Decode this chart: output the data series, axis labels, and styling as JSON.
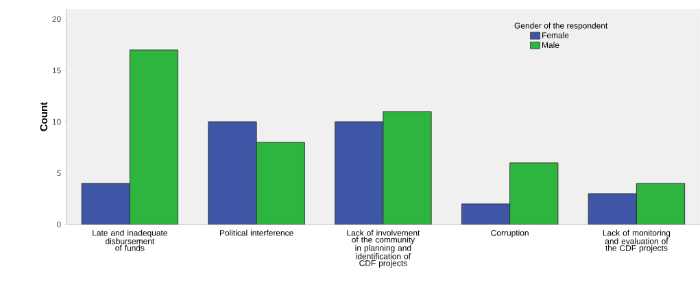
{
  "chart_data": {
    "type": "bar",
    "ylabel": "Count",
    "legend_title": "Gender of the respondent",
    "categories": [
      "Late and inadequate disbursement of funds",
      "Political interference",
      "Lack of involvement of the community in planning and identification of CDF projects",
      "Corruption",
      "Lack of monitoring and evaluation of the CDF projects"
    ],
    "series": [
      {
        "name": "Female",
        "color": "#3e56a6",
        "values": [
          4,
          10,
          10,
          2,
          3
        ]
      },
      {
        "name": "Male",
        "color": "#2db540",
        "values": [
          17,
          8,
          11,
          6,
          4
        ]
      }
    ],
    "ylim": [
      0,
      21
    ],
    "yticks": [
      0,
      5,
      10,
      15,
      20
    ],
    "grid": false,
    "legend": "top right"
  }
}
